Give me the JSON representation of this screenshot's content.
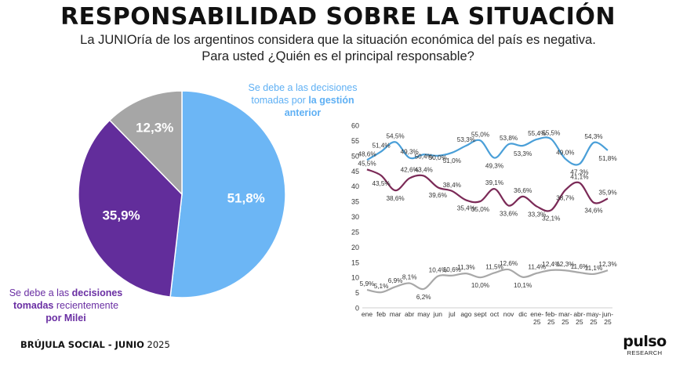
{
  "header": {
    "title": "RESPONSABILIDAD SOBRE LA SITUACIÓN",
    "subtitle_line1": "La JUNIOría de los argentinos considera que la situación económica del país es negativa.",
    "subtitle_line2": "Para usted ¿Quién es el principal responsable?"
  },
  "pie_labels": {
    "blue_line1": "Se debe a las decisiones",
    "blue_line2_a": "tomadas por ",
    "blue_line2_b": "la gestión",
    "blue_line3": "anterior",
    "purple_line1_a": "Se debe a las ",
    "purple_line1_b": "decisiones",
    "purple_line2_a": "tomadas",
    "purple_line2_b": " recientemente",
    "purple_line3": "por Milei"
  },
  "footer": {
    "source_bold": "BRÚJULA SOCIAL - JUNIO",
    "source_year": " 2025"
  },
  "logo": {
    "main": "pulso",
    "sub": "RESEARCH"
  },
  "colors": {
    "blue": "#6cb6f5",
    "purple": "#622d9b",
    "gray": "#a6a6a6",
    "line_blue": "#4a9fd8",
    "line_maroon": "#7b2a57",
    "line_gray": "#a8a8a8"
  },
  "chart_data": [
    {
      "type": "pie",
      "slices": [
        {
          "label": "Se debe a las decisiones tomadas por la gestión anterior",
          "value": 51.8,
          "text": "51,8%",
          "color": "#6cb6f5"
        },
        {
          "label": "Se debe a las decisiones tomadas recientemente por Milei",
          "value": 35.9,
          "text": "35,9%",
          "color": "#622d9b"
        },
        {
          "label": "",
          "value": 12.3,
          "text": "12,3%",
          "color": "#a6a6a6"
        }
      ]
    },
    {
      "type": "line",
      "categories": [
        "ene",
        "feb",
        "mar",
        "abr",
        "may",
        "jun",
        "jul",
        "ago",
        "sept",
        "oct",
        "nov",
        "dic",
        "ene-25",
        "feb-25",
        "mar-25",
        "abr-25",
        "may-25",
        "jun-25"
      ],
      "xtick_labels": [
        [
          "ene"
        ],
        [
          "feb"
        ],
        [
          "mar"
        ],
        [
          "abr"
        ],
        [
          "may"
        ],
        [
          "jun"
        ],
        [
          "jul"
        ],
        [
          "ago"
        ],
        [
          "sept"
        ],
        [
          "oct"
        ],
        [
          "nov"
        ],
        [
          "dic"
        ],
        [
          "ene-",
          "25"
        ],
        [
          "feb-",
          "25"
        ],
        [
          "mar-",
          "25"
        ],
        [
          "abr-",
          "25"
        ],
        [
          "may-",
          "25"
        ],
        [
          "jun-",
          "25"
        ]
      ],
      "ylim": [
        0,
        60
      ],
      "yticks": [
        "0",
        "5",
        "10",
        "15",
        "20",
        "25",
        "30",
        "35",
        "40",
        "45",
        "50",
        "55",
        "60"
      ],
      "series": [
        {
          "color": "#4a9fd8",
          "values": [
            48.6,
            51.4,
            54.5,
            49.3,
            50.4,
            50.0,
            51.0,
            53.3,
            55.0,
            49.3,
            53.8,
            53.3,
            55.4,
            55.5,
            49.0,
            47.3,
            54.3,
            51.8
          ],
          "labels": [
            "48,6%",
            "51,4%",
            "54,5%",
            "49,3%",
            "50,4%",
            "50,0%",
            "51,0%",
            "53,3%",
            "55,0%",
            "49,3%",
            "53,8%",
            "53,3%",
            "55,4%",
            "55,5%",
            "49,0%",
            "47,3%",
            "54,3%",
            "51,8%"
          ]
        },
        {
          "color": "#7b2a57",
          "values": [
            45.5,
            43.5,
            38.6,
            42.6,
            43.4,
            39.6,
            38.4,
            35.4,
            35.0,
            39.1,
            33.6,
            36.6,
            33.3,
            32.1,
            38.7,
            41.1,
            34.6,
            35.9
          ],
          "labels": [
            "45,5%",
            "43,5%",
            "38,6%",
            "42,6%",
            "43,4%",
            "39,6%",
            "38,4%",
            "35,4%",
            "35,0%",
            "39,1%",
            "33,6%",
            "36,6%",
            "33,3%",
            "32,1%",
            "38,7%",
            "41,1%",
            "34,6%",
            "35,9%"
          ]
        },
        {
          "color": "#a8a8a8",
          "values": [
            5.9,
            5.1,
            6.9,
            8.1,
            6.2,
            10.4,
            10.6,
            11.3,
            10.0,
            11.5,
            12.6,
            10.1,
            11.4,
            12.4,
            12.3,
            11.6,
            11.1,
            12.3
          ],
          "labels": [
            "5,9%",
            "5,1%",
            "6,9%",
            "8,1%",
            "6,2%",
            "10,4%",
            "10,6%",
            "11,3%",
            "10,0%",
            "11,5%",
            "12,6%",
            "10,1%",
            "11,4%",
            "12,4%",
            "12,3%",
            "11,6%",
            "11,1%",
            "12,3%"
          ]
        }
      ]
    }
  ]
}
